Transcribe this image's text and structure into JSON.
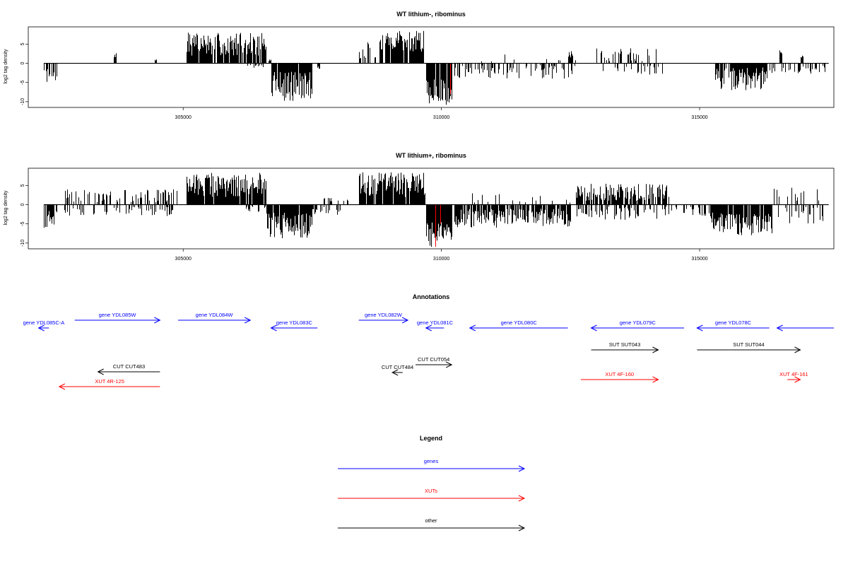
{
  "colors": {
    "genes": "#0000ff",
    "xuts": "#ff0000",
    "other": "#000000",
    "highlight": "#ff0000"
  },
  "chart_data": [
    {
      "type": "bar",
      "title": "WT lithium-, ribominus",
      "ylabel": "log2 tag density",
      "xlim": [
        302000,
        317600
      ],
      "ylim": [
        -11.5,
        9.5
      ],
      "x_ticks": [
        305000,
        310000,
        315000
      ],
      "y_ticks": [
        {
          "v": 5,
          "label": "5"
        },
        {
          "v": 0,
          "label": "0"
        },
        {
          "v": -5,
          "label": "-5"
        },
        {
          "v": -10,
          "label": "-10"
        }
      ],
      "x_range": [
        302300,
        317500
      ],
      "seed": 7,
      "segments": [
        {
          "from": 302300,
          "to": 302550,
          "dens": 0.6,
          "min": -5,
          "max": -1.5
        },
        {
          "from": 303650,
          "to": 303700,
          "dens": 1,
          "min": 1.5,
          "max": 2.7
        },
        {
          "from": 304450,
          "to": 304480,
          "dens": 1,
          "min": 0.5,
          "max": 1.2
        },
        {
          "from": 305070,
          "to": 306600,
          "dens": 0.9,
          "min": 2,
          "max": 8
        },
        {
          "from": 306200,
          "to": 306600,
          "dens": 0.3,
          "min": -1.5,
          "max": -0.3
        },
        {
          "from": 306650,
          "to": 306700,
          "dens": 1,
          "min": 0.5,
          "max": 1.5
        },
        {
          "from": 306700,
          "to": 307500,
          "dens": 0.9,
          "min": -10,
          "max": -2
        },
        {
          "from": 307600,
          "to": 307650,
          "dens": 1,
          "min": -1.5,
          "max": -0.5
        },
        {
          "from": 308400,
          "to": 308750,
          "dens": 0.6,
          "min": 1,
          "max": 5.5
        },
        {
          "from": 308800,
          "to": 309650,
          "dens": 0.9,
          "min": 3,
          "max": 8.5
        },
        {
          "from": 309700,
          "to": 310200,
          "dens": 0.95,
          "min": -11,
          "max": -4
        },
        {
          "from": 310250,
          "to": 312600,
          "dens": 0.35,
          "min": -4,
          "max": -0.5
        },
        {
          "from": 310500,
          "to": 312600,
          "dens": 0.06,
          "min": 0.5,
          "max": 2.5
        },
        {
          "from": 312450,
          "to": 312550,
          "dens": 1,
          "min": 1.5,
          "max": 3.2
        },
        {
          "from": 313000,
          "to": 314200,
          "dens": 0.25,
          "min": 0.5,
          "max": 4
        },
        {
          "from": 313000,
          "to": 314300,
          "dens": 0.2,
          "min": -3,
          "max": -0.5
        },
        {
          "from": 315300,
          "to": 316300,
          "dens": 0.9,
          "min": -7,
          "max": -1
        },
        {
          "from": 316300,
          "to": 317500,
          "dens": 0.3,
          "min": -3,
          "max": -0.5
        },
        {
          "from": 316550,
          "to": 316600,
          "dens": 1,
          "min": 2,
          "max": 3.5
        },
        {
          "from": 316950,
          "to": 317000,
          "dens": 1,
          "min": 1.5,
          "max": 2.8
        }
      ],
      "highlights": [
        {
          "from": 309700,
          "to": 310200,
          "min": -11,
          "max": -4,
          "dens": 0.08
        }
      ]
    },
    {
      "type": "bar",
      "title": "WT lithium+, ribominus",
      "ylabel": "log2 tag density",
      "xlim": [
        302000,
        317600
      ],
      "ylim": [
        -11.5,
        9.5
      ],
      "x_ticks": [
        305000,
        310000,
        315000
      ],
      "y_ticks": [
        {
          "v": 5,
          "label": "5"
        },
        {
          "v": 0,
          "label": "0"
        },
        {
          "v": -5,
          "label": "-5"
        },
        {
          "v": -10,
          "label": "-10"
        }
      ],
      "x_range": [
        302300,
        317500
      ],
      "seed": 19,
      "segments": [
        {
          "from": 302300,
          "to": 302550,
          "dens": 0.7,
          "min": -6,
          "max": -1.5
        },
        {
          "from": 302700,
          "to": 304900,
          "dens": 0.35,
          "min": 0.5,
          "max": 4
        },
        {
          "from": 302700,
          "to": 304900,
          "dens": 0.25,
          "min": -3,
          "max": -0.5
        },
        {
          "from": 305070,
          "to": 306600,
          "dens": 0.9,
          "min": 2,
          "max": 8.5
        },
        {
          "from": 306200,
          "to": 306600,
          "dens": 0.3,
          "min": -2,
          "max": -0.3
        },
        {
          "from": 306600,
          "to": 307500,
          "dens": 0.9,
          "min": -9,
          "max": -2
        },
        {
          "from": 307500,
          "to": 308200,
          "dens": 0.3,
          "min": -3,
          "max": -0.5
        },
        {
          "from": 307700,
          "to": 308200,
          "dens": 0.2,
          "min": 0.5,
          "max": 2
        },
        {
          "from": 308400,
          "to": 309700,
          "dens": 0.9,
          "min": 2,
          "max": 8.5
        },
        {
          "from": 309700,
          "to": 310200,
          "dens": 0.95,
          "min": -11,
          "max": -4
        },
        {
          "from": 310250,
          "to": 312500,
          "dens": 0.85,
          "min": -6,
          "max": -1
        },
        {
          "from": 310500,
          "to": 312500,
          "dens": 0.1,
          "min": 0.5,
          "max": 3
        },
        {
          "from": 312600,
          "to": 314400,
          "dens": 0.7,
          "min": 1,
          "max": 5.5
        },
        {
          "from": 312600,
          "to": 314400,
          "dens": 0.5,
          "min": -4,
          "max": -0.5
        },
        {
          "from": 314400,
          "to": 315200,
          "dens": 0.3,
          "min": -3,
          "max": -0.5
        },
        {
          "from": 315200,
          "to": 316400,
          "dens": 0.9,
          "min": -8,
          "max": -2
        },
        {
          "from": 316400,
          "to": 317500,
          "dens": 0.4,
          "min": -5,
          "max": -0.5
        },
        {
          "from": 316400,
          "to": 317500,
          "dens": 0.15,
          "min": 0.5,
          "max": 4.5
        }
      ],
      "highlights": [
        {
          "from": 309700,
          "to": 310200,
          "min": -11,
          "max": -4,
          "dens": 0.08
        }
      ]
    }
  ],
  "annotations": {
    "title": "Annotations",
    "xlim": [
      302000,
      317600
    ],
    "items": [
      {
        "label": "gene YDL085C-A",
        "type": "gene",
        "from": 302400,
        "to": 302200,
        "row": 1
      },
      {
        "label": "gene YDL085W",
        "type": "gene",
        "from": 302900,
        "to": 304550,
        "row": 0
      },
      {
        "label": "gene YDL084W",
        "type": "gene",
        "from": 304900,
        "to": 306300,
        "row": 0
      },
      {
        "label": "gene YDL083C",
        "type": "gene",
        "from": 307600,
        "to": 306700,
        "row": 1
      },
      {
        "label": "gene YDL082W",
        "type": "gene",
        "from": 308400,
        "to": 309350,
        "row": 0
      },
      {
        "label": "gene YDL081C",
        "type": "gene",
        "from": 310050,
        "to": 309700,
        "row": 1
      },
      {
        "label": "gene YDL080C",
        "type": "gene",
        "from": 312450,
        "to": 310550,
        "row": 1
      },
      {
        "label": "gene YDL079C",
        "type": "gene",
        "from": 314700,
        "to": 312900,
        "row": 1
      },
      {
        "label": "gene YDL078C",
        "type": "gene",
        "from": 316350,
        "to": 314950,
        "row": 1
      },
      {
        "label": "",
        "type": "gene",
        "from": 317600,
        "to": 316500,
        "row": 1
      },
      {
        "label": "SUT SUT043",
        "type": "other",
        "from": 312900,
        "to": 314200,
        "row": 2
      },
      {
        "label": "SUT SUT044",
        "type": "other",
        "from": 314950,
        "to": 316950,
        "row": 2
      },
      {
        "label": "CUT CUT483",
        "type": "other",
        "from": 304550,
        "to": 303350,
        "row": 3
      },
      {
        "label": "CUT CUT484",
        "type": "other",
        "from": 309250,
        "to": 309050,
        "row": 4
      },
      {
        "label": "CUT CUT054",
        "type": "other",
        "from": 309500,
        "to": 310200,
        "row": 5
      },
      {
        "label": "XUT 4R-125",
        "type": "xut",
        "from": 304550,
        "to": 302600,
        "row": 6
      },
      {
        "label": "XUT 4F-160",
        "type": "xut",
        "from": 312700,
        "to": 314200,
        "row": 7
      },
      {
        "label": "XUT 4F-161",
        "type": "xut",
        "from": 316700,
        "to": 316950,
        "row": 7
      }
    ]
  },
  "legend": {
    "title": "Legend",
    "items": [
      {
        "label": "genes",
        "type": "gene"
      },
      {
        "label": "XUTs",
        "type": "xut"
      },
      {
        "label": "other",
        "type": "other"
      }
    ]
  }
}
